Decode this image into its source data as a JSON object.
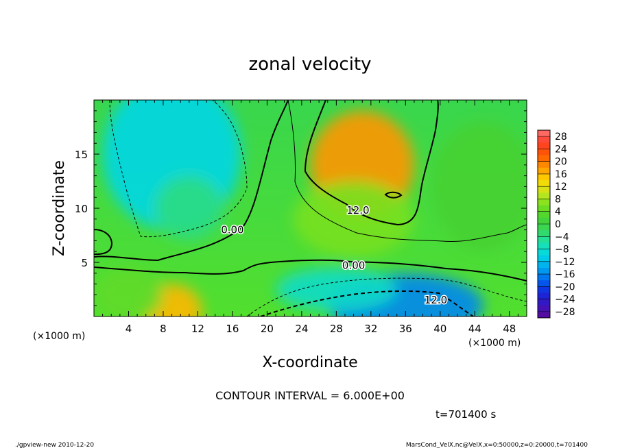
{
  "chart_data": {
    "type": "heatmap",
    "title": "zonal velocity",
    "xlabel": "X-coordinate",
    "ylabel": "Z-coordinate",
    "x_unit_left": "(×1000 m)",
    "x_unit_right": "(×1000 m)",
    "xlim": [
      0,
      50
    ],
    "ylim": [
      0,
      20
    ],
    "x_ticks": [
      "4",
      "8",
      "12",
      "16",
      "20",
      "24",
      "28",
      "32",
      "36",
      "40",
      "44",
      "48"
    ],
    "x_tick_values": [
      4,
      8,
      12,
      16,
      20,
      24,
      28,
      32,
      36,
      40,
      44,
      48
    ],
    "y_ticks": [
      "5",
      "10",
      "15"
    ],
    "y_tick_values": [
      5,
      10,
      15
    ],
    "colorbar_labels": [
      "28",
      "24",
      "20",
      "16",
      "12",
      "8",
      "4",
      "0",
      "−4",
      "−8",
      "−12",
      "−16",
      "−20",
      "−24",
      "−28"
    ],
    "colorbar_values": [
      28,
      24,
      20,
      16,
      12,
      8,
      4,
      0,
      -4,
      -8,
      -12,
      -16,
      -20,
      -24,
      -28
    ],
    "colorbar_range": [
      -30,
      30
    ],
    "contour_interval_text": "CONTOUR INTERVAL = 6.000E+00",
    "contour_labels": [
      {
        "text": "0.00",
        "x": 16,
        "z": 7.7
      },
      {
        "text": "12.0",
        "x": 30.5,
        "z": 9.5
      },
      {
        "text": "0.00",
        "x": 30,
        "z": 4.4
      },
      {
        "text": "12.0",
        "x": 39.5,
        "z": 1.2
      }
    ],
    "anomalies": [
      {
        "x": 9,
        "z": 15,
        "sx": 8,
        "sz": 7,
        "value": -10
      },
      {
        "x": 11,
        "z": 10,
        "sx": 4,
        "sz": 3,
        "value": -4
      },
      {
        "x": 31,
        "z": 14,
        "sx": 6,
        "sz": 5,
        "value": 18
      },
      {
        "x": 30,
        "z": 9,
        "sx": 7,
        "sz": 3.5,
        "value": 6
      },
      {
        "x": 36,
        "z": 1,
        "sx": 9,
        "sz": 3,
        "value": -16
      },
      {
        "x": 28,
        "z": 2.5,
        "sx": 7,
        "sz": 2,
        "value": -8
      },
      {
        "x": 9,
        "z": 0.5,
        "sx": 3.5,
        "sz": 2.5,
        "value": 16
      },
      {
        "x": 4,
        "z": 2,
        "sx": 4,
        "sz": 2.5,
        "value": 4
      },
      {
        "x": 45,
        "z": 12,
        "sx": 6,
        "sz": 6,
        "value": 2
      }
    ]
  },
  "footer": {
    "time": "t=701400 s",
    "left_note": "./gpview-new  2010-12-20",
    "right_note": "MarsCond_VelX.nc@VelX,x=0:50000,z=0:20000,t=701400"
  }
}
